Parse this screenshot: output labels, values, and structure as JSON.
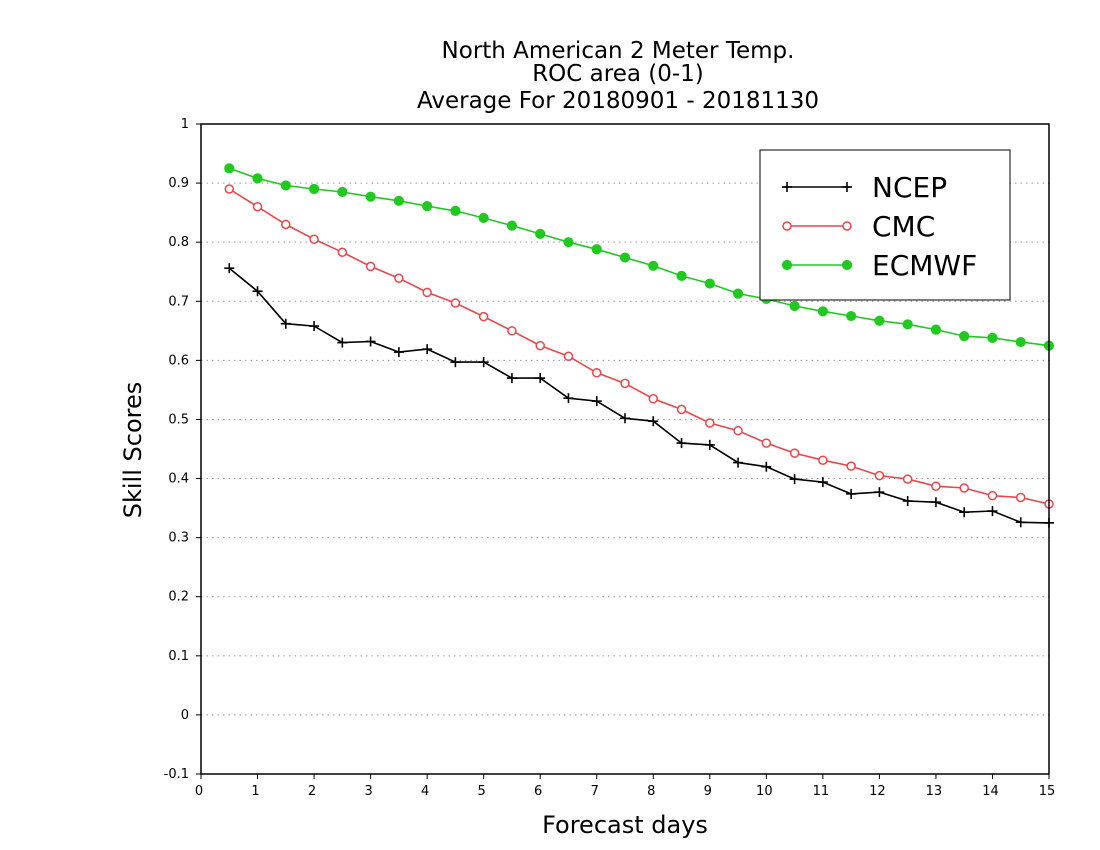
{
  "chart_data": {
    "type": "line",
    "title": [
      "North American 2 Meter Temp.",
      "ROC area (0-1)",
      "Average For 20180901 - 20181130"
    ],
    "xlabel": "Forecast days",
    "ylabel": "Skill Scores",
    "xlim": [
      0,
      15
    ],
    "ylim": [
      -0.1,
      1
    ],
    "xticks": [
      0,
      1,
      2,
      3,
      4,
      5,
      6,
      7,
      8,
      9,
      10,
      11,
      12,
      13,
      14,
      15
    ],
    "yticks": [
      -0.1,
      0,
      0.1,
      0.2,
      0.3,
      0.4,
      0.5,
      0.6,
      0.7,
      0.8,
      0.9,
      1
    ],
    "ytick_labels": [
      "-0.1",
      "0",
      "0.1",
      "0.2",
      "0.3",
      "0.4",
      "0.5",
      "0.6",
      "0.7",
      "0.8",
      "0.9",
      "1"
    ],
    "grid": "horizontal dotted",
    "legend_position": "top-right",
    "x": [
      0.5,
      1,
      1.5,
      2,
      2.5,
      3,
      3.5,
      4,
      4.5,
      5,
      5.5,
      6,
      6.5,
      7,
      7.5,
      8,
      8.5,
      9,
      9.5,
      10,
      10.5,
      11,
      11.5,
      12,
      12.5,
      13,
      13.5,
      14,
      14.5,
      15
    ],
    "series": [
      {
        "name": "NCEP",
        "color": "#000000",
        "marker": "plus",
        "values": [
          0.756,
          0.717,
          0.662,
          0.658,
          0.63,
          0.632,
          0.614,
          0.619,
          0.597,
          0.597,
          0.57,
          0.57,
          0.536,
          0.531,
          0.502,
          0.497,
          0.46,
          0.457,
          0.427,
          0.42,
          0.399,
          0.394,
          0.374,
          0.377,
          0.362,
          0.36,
          0.343,
          0.345,
          0.326,
          0.325
        ]
      },
      {
        "name": "CMC",
        "color": "#e8474b",
        "marker": "open-circle",
        "values": [
          0.89,
          0.86,
          0.83,
          0.805,
          0.783,
          0.759,
          0.739,
          0.715,
          0.697,
          0.674,
          0.65,
          0.625,
          0.607,
          0.579,
          0.561,
          0.535,
          0.517,
          0.494,
          0.481,
          0.46,
          0.443,
          0.431,
          0.421,
          0.405,
          0.399,
          0.387,
          0.384,
          0.371,
          0.368,
          0.357
        ]
      },
      {
        "name": "ECMWF",
        "color": "#20c820",
        "marker": "filled-circle",
        "values": [
          0.925,
          0.908,
          0.896,
          0.89,
          0.885,
          0.877,
          0.87,
          0.861,
          0.853,
          0.841,
          0.828,
          0.814,
          0.8,
          0.788,
          0.774,
          0.76,
          0.743,
          0.73,
          0.713,
          0.704,
          0.692,
          0.683,
          0.675,
          0.667,
          0.661,
          0.652,
          0.641,
          0.638,
          0.631,
          0.625
        ]
      }
    ]
  }
}
